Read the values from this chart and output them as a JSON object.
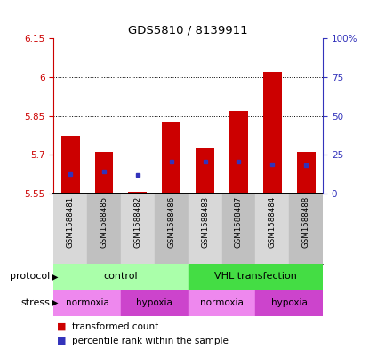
{
  "title": "GDS5810 / 8139911",
  "samples": [
    "GSM1588481",
    "GSM1588485",
    "GSM1588482",
    "GSM1588486",
    "GSM1588483",
    "GSM1588487",
    "GSM1588484",
    "GSM1588488"
  ],
  "bar_heights": [
    5.775,
    5.71,
    5.558,
    5.83,
    5.725,
    5.87,
    6.02,
    5.71
  ],
  "blue_positions": [
    5.625,
    5.635,
    5.622,
    5.675,
    5.675,
    5.675,
    5.665,
    5.66
  ],
  "ymin": 5.55,
  "ymax": 6.15,
  "yticks": [
    5.55,
    5.7,
    5.85,
    6.0,
    6.15
  ],
  "ytick_labels": [
    "5.55",
    "5.7",
    "5.85",
    "6",
    "6.15"
  ],
  "right_yticks": [
    0,
    25,
    50,
    75,
    100
  ],
  "right_ytick_labels": [
    "0",
    "25",
    "50",
    "75",
    "100%"
  ],
  "bar_color": "#cc0000",
  "blue_color": "#3333bb",
  "bar_width": 0.55,
  "protocol_groups": [
    {
      "label": "control",
      "start": 0,
      "end": 3,
      "color": "#aaffaa"
    },
    {
      "label": "VHL transfection",
      "start": 4,
      "end": 7,
      "color": "#44dd44"
    }
  ],
  "stress_groups": [
    {
      "label": "normoxia",
      "start": 0,
      "end": 1,
      "color": "#ee88ee"
    },
    {
      "label": "hypoxia",
      "start": 2,
      "end": 3,
      "color": "#cc44cc"
    },
    {
      "label": "normoxia",
      "start": 4,
      "end": 5,
      "color": "#ee88ee"
    },
    {
      "label": "hypoxia",
      "start": 6,
      "end": 7,
      "color": "#cc44cc"
    }
  ],
  "protocol_label": "protocol",
  "stress_label": "stress",
  "legend_red": "transformed count",
  "legend_blue": "percentile rank within the sample",
  "left_tick_color": "#cc0000",
  "right_tick_color": "#3333bb",
  "grid_color": "#000000"
}
